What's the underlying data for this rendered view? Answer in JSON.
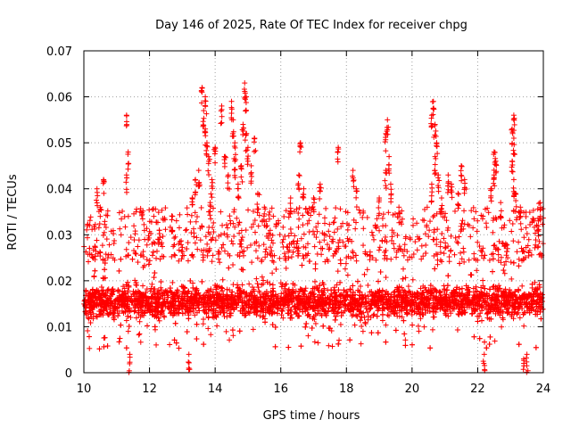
{
  "chart_data": {
    "type": "scatter",
    "title": "Day 146 of 2025, Rate Of TEC Index for receiver chpg",
    "xlabel": "GPS time / hours",
    "ylabel": "ROTI / TECUs",
    "xlim": [
      10,
      24
    ],
    "ylim": [
      0,
      0.07
    ],
    "xticks": [
      "10",
      "12",
      "14",
      "16",
      "18",
      "20",
      "22",
      "24"
    ],
    "yticks": [
      "0",
      "0.01",
      "0.02",
      "0.03",
      "0.04",
      "0.05",
      "0.06",
      "0.07"
    ],
    "grid": true,
    "marker": "+",
    "series": [
      {
        "name": "ROTI",
        "color": "#ff0000",
        "baseline_band": [
          0.005,
          0.028
        ],
        "highlights": [
          {
            "x": 11.3,
            "y": 0.056
          },
          {
            "x": 11.35,
            "y": 0.048
          },
          {
            "x": 11.3,
            "y": 0.043
          },
          {
            "x": 10.6,
            "y": 0.042
          },
          {
            "x": 10.4,
            "y": 0.04
          },
          {
            "x": 10.5,
            "y": 0.036
          },
          {
            "x": 13.6,
            "y": 0.062
          },
          {
            "x": 13.7,
            "y": 0.06
          },
          {
            "x": 13.65,
            "y": 0.057
          },
          {
            "x": 13.7,
            "y": 0.053
          },
          {
            "x": 13.75,
            "y": 0.05
          },
          {
            "x": 13.8,
            "y": 0.047
          },
          {
            "x": 13.5,
            "y": 0.044
          },
          {
            "x": 13.4,
            "y": 0.042
          },
          {
            "x": 13.9,
            "y": 0.042
          },
          {
            "x": 13.3,
            "y": 0.038
          },
          {
            "x": 13.85,
            "y": 0.037
          },
          {
            "x": 14.0,
            "y": 0.049
          },
          {
            "x": 14.2,
            "y": 0.058
          },
          {
            "x": 14.5,
            "y": 0.059
          },
          {
            "x": 14.55,
            "y": 0.055
          },
          {
            "x": 14.6,
            "y": 0.05
          },
          {
            "x": 14.6,
            "y": 0.046
          },
          {
            "x": 14.7,
            "y": 0.041
          },
          {
            "x": 14.8,
            "y": 0.045
          },
          {
            "x": 14.9,
            "y": 0.063
          },
          {
            "x": 14.95,
            "y": 0.06
          },
          {
            "x": 14.85,
            "y": 0.054
          },
          {
            "x": 14.95,
            "y": 0.052
          },
          {
            "x": 15.0,
            "y": 0.049
          },
          {
            "x": 14.4,
            "y": 0.043
          },
          {
            "x": 14.3,
            "y": 0.047
          },
          {
            "x": 15.2,
            "y": 0.051
          },
          {
            "x": 15.1,
            "y": 0.045
          },
          {
            "x": 15.3,
            "y": 0.039
          },
          {
            "x": 15.5,
            "y": 0.036
          },
          {
            "x": 16.6,
            "y": 0.05
          },
          {
            "x": 16.55,
            "y": 0.043
          },
          {
            "x": 16.7,
            "y": 0.04
          },
          {
            "x": 17.2,
            "y": 0.041
          },
          {
            "x": 17.0,
            "y": 0.038
          },
          {
            "x": 16.3,
            "y": 0.038
          },
          {
            "x": 17.75,
            "y": 0.049
          },
          {
            "x": 18.2,
            "y": 0.044
          },
          {
            "x": 18.3,
            "y": 0.04
          },
          {
            "x": 19.25,
            "y": 0.055
          },
          {
            "x": 19.2,
            "y": 0.052
          },
          {
            "x": 19.3,
            "y": 0.047
          },
          {
            "x": 19.2,
            "y": 0.044
          },
          {
            "x": 19.35,
            "y": 0.041
          },
          {
            "x": 19.0,
            "y": 0.038
          },
          {
            "x": 19.6,
            "y": 0.036
          },
          {
            "x": 20.65,
            "y": 0.059
          },
          {
            "x": 20.6,
            "y": 0.056
          },
          {
            "x": 20.7,
            "y": 0.054
          },
          {
            "x": 20.75,
            "y": 0.05
          },
          {
            "x": 20.7,
            "y": 0.047
          },
          {
            "x": 20.8,
            "y": 0.043
          },
          {
            "x": 20.6,
            "y": 0.041
          },
          {
            "x": 20.9,
            "y": 0.038
          },
          {
            "x": 21.1,
            "y": 0.043
          },
          {
            "x": 21.2,
            "y": 0.041
          },
          {
            "x": 21.5,
            "y": 0.045
          },
          {
            "x": 21.6,
            "y": 0.042
          },
          {
            "x": 21.4,
            "y": 0.039
          },
          {
            "x": 22.5,
            "y": 0.048
          },
          {
            "x": 22.55,
            "y": 0.046
          },
          {
            "x": 22.5,
            "y": 0.043
          },
          {
            "x": 22.4,
            "y": 0.04
          },
          {
            "x": 22.7,
            "y": 0.037
          },
          {
            "x": 23.1,
            "y": 0.056
          },
          {
            "x": 23.05,
            "y": 0.053
          },
          {
            "x": 23.1,
            "y": 0.051
          },
          {
            "x": 23.05,
            "y": 0.046
          },
          {
            "x": 23.1,
            "y": 0.042
          },
          {
            "x": 23.15,
            "y": 0.039
          },
          {
            "x": 23.3,
            "y": 0.036
          },
          {
            "x": 23.9,
            "y": 0.037
          },
          {
            "x": 23.85,
            "y": 0.033
          },
          {
            "x": 12.3,
            "y": 0.031
          },
          {
            "x": 12.7,
            "y": 0.034
          },
          {
            "x": 23.4,
            "y": 0.003
          },
          {
            "x": 23.5,
            "y": 0.004
          },
          {
            "x": 13.2,
            "y": 0.004
          },
          {
            "x": 11.4,
            "y": 0.004
          },
          {
            "x": 22.2,
            "y": 0.004
          }
        ]
      }
    ]
  }
}
